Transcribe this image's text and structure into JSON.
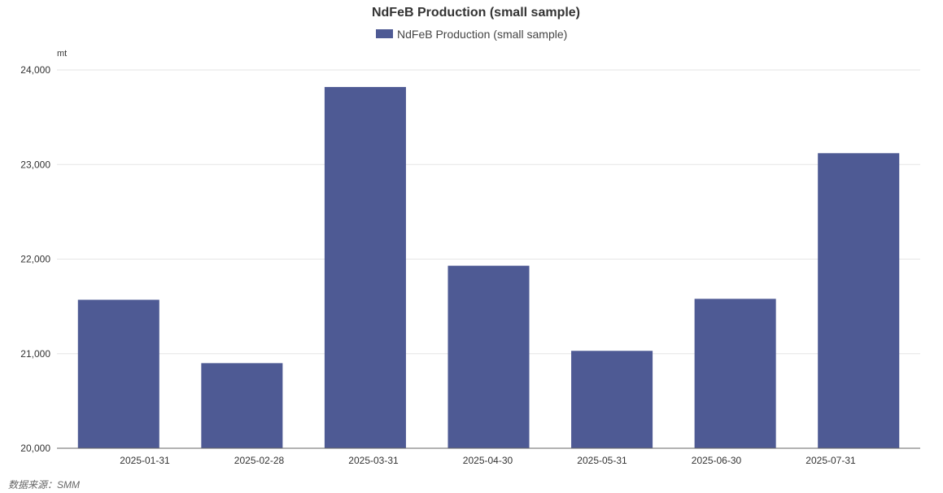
{
  "chart_data": {
    "type": "bar",
    "title": "NdFeB Production (small sample)",
    "categories": [
      "2025-01-31",
      "2025-02-28",
      "2025-03-31",
      "2025-04-30",
      "2025-05-31",
      "2025-06-30",
      "2025-07-31"
    ],
    "series": [
      {
        "name": "NdFeB Production (small sample)",
        "values": [
          21570,
          20900,
          23820,
          21930,
          21030,
          21580,
          23120
        ]
      }
    ],
    "y_unit": "mt",
    "ylim": [
      20000,
      24000
    ],
    "y_ticks": [
      "20,000",
      "21,000",
      "22,000",
      "23,000",
      "24,000"
    ],
    "grid": true,
    "legend_position": "top-center",
    "colors": {
      "bar": "#4e5a94",
      "grid": "#e6e6e6",
      "axis": "#666666"
    }
  },
  "source_note": "数据来源：SMM"
}
